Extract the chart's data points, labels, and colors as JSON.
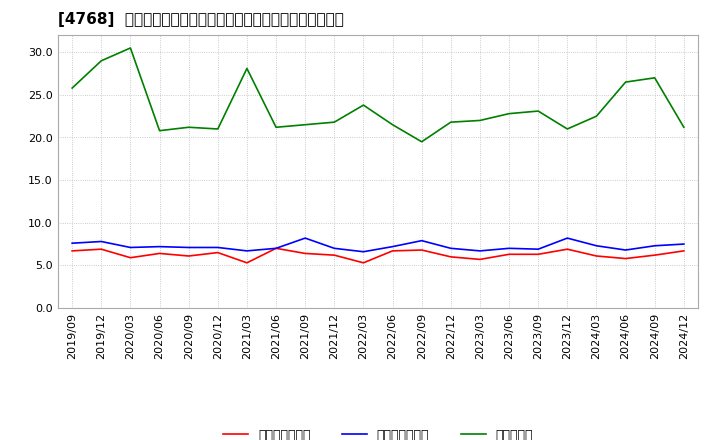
{
  "title": "[4768]  売上債権回転率、買入債務回転率、在庫回転率の推移",
  "x_labels": [
    "2019/09",
    "2019/12",
    "2020/03",
    "2020/06",
    "2020/09",
    "2020/12",
    "2021/03",
    "2021/06",
    "2021/09",
    "2021/12",
    "2022/03",
    "2022/06",
    "2022/09",
    "2022/12",
    "2023/03",
    "2023/06",
    "2023/09",
    "2023/12",
    "2024/03",
    "2024/06",
    "2024/09",
    "2024/12"
  ],
  "receivables_turnover": [
    6.7,
    6.9,
    5.9,
    6.4,
    6.1,
    6.5,
    5.3,
    7.0,
    6.4,
    6.2,
    5.3,
    6.7,
    6.8,
    6.0,
    5.7,
    6.3,
    6.3,
    6.9,
    6.1,
    5.8,
    6.2,
    6.7
  ],
  "payables_turnover": [
    7.6,
    7.8,
    7.1,
    7.2,
    7.1,
    7.1,
    6.7,
    7.0,
    8.2,
    7.0,
    6.6,
    7.2,
    7.9,
    7.0,
    6.7,
    7.0,
    6.9,
    8.2,
    7.3,
    6.8,
    7.3,
    7.5
  ],
  "inventory_turnover": [
    25.8,
    29.0,
    30.5,
    20.8,
    21.2,
    21.0,
    28.1,
    21.2,
    21.5,
    21.8,
    23.8,
    21.5,
    19.5,
    21.8,
    22.0,
    22.8,
    23.1,
    21.0,
    22.5,
    26.5,
    27.0,
    21.2
  ],
  "line_colors": {
    "receivables": "#ff0000",
    "payables": "#0000ff",
    "inventory": "#008000"
  },
  "legend_labels": {
    "receivables": "売上債権回転率",
    "payables": "買入債務回転率",
    "inventory": "在庫回転率"
  },
  "ylim": [
    0.0,
    32.0
  ],
  "yticks": [
    0.0,
    5.0,
    10.0,
    15.0,
    20.0,
    25.0,
    30.0
  ],
  "background_color": "#ffffff",
  "plot_bg_color": "#ffffff",
  "grid_color": "#bbbbbb",
  "title_fontsize": 11,
  "legend_fontsize": 9,
  "tick_fontsize": 8
}
